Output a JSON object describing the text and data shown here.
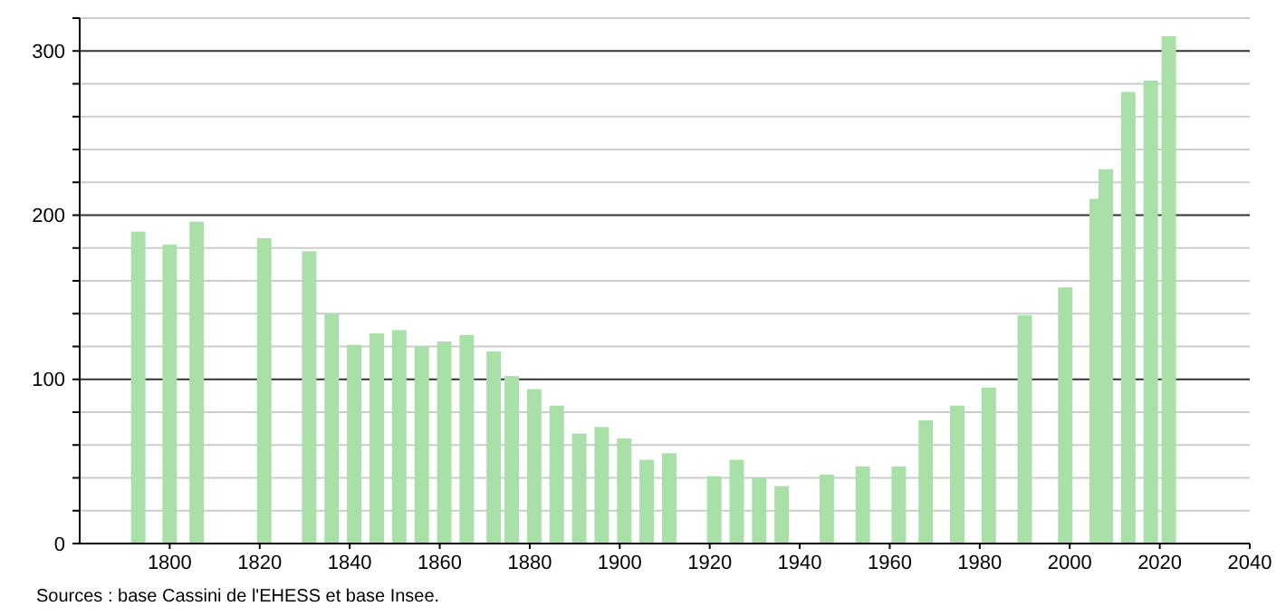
{
  "chart_data": {
    "type": "bar",
    "x": [
      1793,
      1800,
      1806,
      1821,
      1831,
      1836,
      1841,
      1846,
      1851,
      1856,
      1861,
      1866,
      1872,
      1876,
      1881,
      1886,
      1891,
      1896,
      1901,
      1906,
      1911,
      1921,
      1926,
      1931,
      1936,
      1946,
      1954,
      1962,
      1968,
      1975,
      1982,
      1990,
      1999,
      2006,
      2008,
      2013,
      2018,
      2022
    ],
    "series": [
      {
        "color": "#a8e0a8",
        "values": [
          190,
          182,
          196,
          186,
          178,
          140,
          121,
          128,
          130,
          120,
          123,
          127,
          117,
          102,
          94,
          84,
          67,
          71,
          64,
          51,
          55,
          41,
          51,
          40,
          35,
          42,
          47,
          47,
          75,
          84,
          95,
          139,
          156,
          210,
          228,
          275,
          282,
          309
        ]
      }
    ],
    "xlim": [
      1780,
      2040
    ],
    "xticks": [
      1800,
      1820,
      1840,
      1860,
      1880,
      1900,
      1920,
      1940,
      1960,
      1980,
      2000,
      2020,
      2040
    ],
    "ylim": [
      0,
      320
    ],
    "yticks": [
      0,
      {
        "value": 20,
        "label": null
      },
      {
        "value": 40,
        "label": null
      },
      {
        "value": 60,
        "label": null
      },
      {
        "value": 80,
        "label": null
      },
      100,
      {
        "value": 120,
        "label": null
      },
      {
        "value": 140,
        "label": null
      },
      {
        "value": 160,
        "label": null
      },
      {
        "value": 180,
        "label": null
      },
      200,
      {
        "value": 220,
        "label": null
      },
      {
        "value": 240,
        "label": null
      },
      {
        "value": 260,
        "label": null
      },
      {
        "value": 280,
        "label": null
      },
      300,
      {
        "value": 320,
        "label": null
      }
    ],
    "grid": true,
    "annotations": [
      "Sources : base Cassini de l'EHESS et base Insee."
    ]
  }
}
